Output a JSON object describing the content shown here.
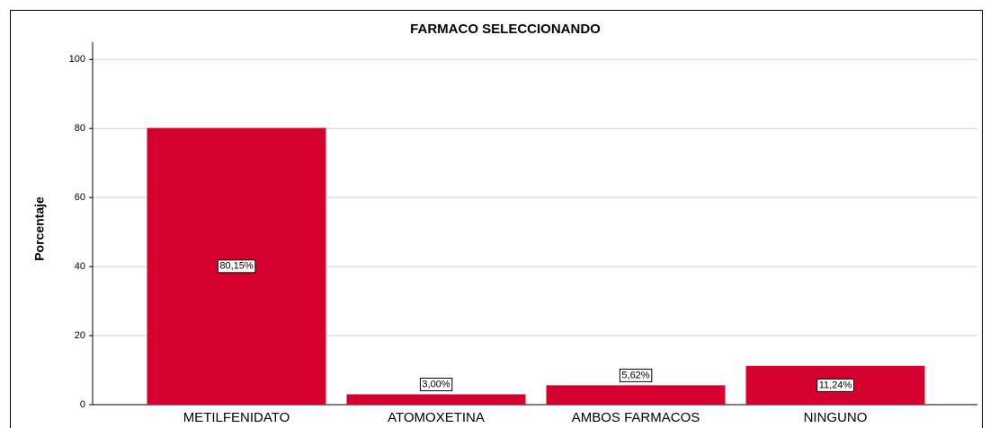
{
  "chart_data": {
    "type": "bar",
    "title": "FARMACO SELECCIONANDO",
    "y_label": "Porcentaje",
    "categories": [
      "METILFENIDATO",
      "ATOMOXETINA",
      "AMBOS FARMACOS",
      "NINGUNO"
    ],
    "values": [
      80.15,
      3.0,
      5.62,
      11.24
    ],
    "value_labels": [
      "80,15%",
      "3,00%",
      "5,62%",
      "11,24%"
    ],
    "color": "#d6002f",
    "ylim": [
      0,
      105
    ],
    "yticks": [
      0,
      20,
      40,
      60,
      80,
      100
    ],
    "grid": true
  }
}
